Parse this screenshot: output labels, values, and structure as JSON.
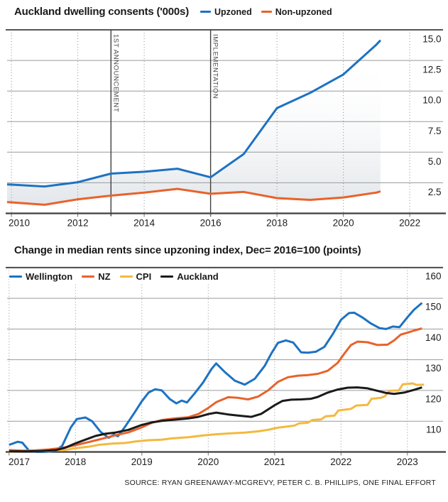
{
  "source_note": "SOURCE: RYAN GREENAWAY-MCGREVY, PETER C. B. PHILLIPS, ONE FINAL EFFORT",
  "colors": {
    "blue": "#1d72c2",
    "orange": "#e8622a",
    "yellow": "#f3b93f",
    "black": "#1a1a1a",
    "grid": "#9a9a9a",
    "frame": "#3f3f3f",
    "annotation": "#4c4c4c",
    "fill_low": "#dfe3e8"
  },
  "chart_data": [
    {
      "id": "consents",
      "type": "line",
      "title": "Auckland dwelling consents ('000s)",
      "ylabel": "",
      "xlabel": "",
      "ylim": [
        0,
        15
      ],
      "xlim": [
        2009.87,
        2023.13
      ],
      "grid": true,
      "legend_position": "top-right-of-title",
      "legend": [
        {
          "label": "Upzoned",
          "color": "#1d72c2"
        },
        {
          "label": "Non-upzoned",
          "color": "#e8622a"
        }
      ],
      "x_ticks": [
        {
          "t": 2010,
          "label": "2010"
        },
        {
          "t": 2012,
          "label": "2012"
        },
        {
          "t": 2014,
          "label": "2014"
        },
        {
          "t": 2016,
          "label": "2016"
        },
        {
          "t": 2018,
          "label": "2018"
        },
        {
          "t": 2020,
          "label": "2020"
        },
        {
          "t": 2022,
          "label": "2022"
        }
      ],
      "y_ticks": [
        {
          "v": 15,
          "label": "15.0",
          "is_border": true
        },
        {
          "v": 12.5,
          "label": "12.5"
        },
        {
          "v": 10,
          "label": "10.0"
        },
        {
          "v": 7.5,
          "label": "7.5"
        },
        {
          "v": 5,
          "label": "5.0"
        },
        {
          "v": 2.5,
          "label": "2.5"
        }
      ],
      "dotted_vertical_years": [
        2010,
        2012,
        2014,
        2018,
        2020,
        2022
      ],
      "events": [
        {
          "t": 2013,
          "label": "1ST ANNOUNCEMENT"
        },
        {
          "t": 2016,
          "label": "IMPLEMENTATION"
        }
      ],
      "fill_between": [
        "Upzoned",
        "Non-upzoned"
      ],
      "series": [
        {
          "name": "Upzoned",
          "color": "#1d72c2",
          "points": [
            [
              2009.87,
              2.37
            ],
            [
              2010,
              2.35
            ],
            [
              2011,
              2.2
            ],
            [
              2012,
              2.55
            ],
            [
              2013,
              3.25
            ],
            [
              2014,
              3.4
            ],
            [
              2015,
              3.65
            ],
            [
              2016,
              2.95
            ],
            [
              2017,
              4.85
            ],
            [
              2018,
              8.6
            ],
            [
              2019,
              9.85
            ],
            [
              2020,
              11.35
            ],
            [
              2021,
              13.8
            ],
            [
              2021.12,
              14.15
            ]
          ]
        },
        {
          "name": "Non-upzoned",
          "color": "#e8622a",
          "points": [
            [
              2009.87,
              0.92
            ],
            [
              2010,
              0.9
            ],
            [
              2011,
              0.7
            ],
            [
              2012,
              1.15
            ],
            [
              2013,
              1.45
            ],
            [
              2014,
              1.7
            ],
            [
              2015,
              2.0
            ],
            [
              2016,
              1.6
            ],
            [
              2017,
              1.75
            ],
            [
              2018,
              1.25
            ],
            [
              2019,
              1.1
            ],
            [
              2020,
              1.3
            ],
            [
              2021,
              1.7
            ],
            [
              2021.12,
              1.8
            ]
          ]
        }
      ]
    },
    {
      "id": "rents",
      "type": "line",
      "title": "Change in median rents since upzoning index, Dec= 2016=100 (points)",
      "ylabel": "",
      "xlabel": "",
      "ylim": [
        100,
        160
      ],
      "xlim": [
        2016.97,
        2023.54
      ],
      "grid": true,
      "legend_position": "inside-top-left",
      "legend": [
        {
          "label": "Wellington",
          "color": "#1d72c2"
        },
        {
          "label": "NZ",
          "color": "#e8622a"
        },
        {
          "label": "CPI",
          "color": "#f3b93f"
        },
        {
          "label": "Auckland",
          "color": "#1a1a1a"
        }
      ],
      "x_ticks": [
        {
          "t": 2017,
          "label": "2017"
        },
        {
          "t": 2018,
          "label": "2018"
        },
        {
          "t": 2019,
          "label": "2019"
        },
        {
          "t": 2020,
          "label": "2020"
        },
        {
          "t": 2021,
          "label": "2021"
        },
        {
          "t": 2022,
          "label": "2022"
        },
        {
          "t": 2023,
          "label": "2023"
        }
      ],
      "y_ticks": [
        {
          "v": 160,
          "label": "160",
          "is_border": true
        },
        {
          "v": 150,
          "label": "150"
        },
        {
          "v": 140,
          "label": "140"
        },
        {
          "v": 130,
          "label": "130"
        },
        {
          "v": 120,
          "label": "120"
        },
        {
          "v": 110,
          "label": "110"
        }
      ],
      "dotted_vertical_years": [
        2017,
        2018,
        2019,
        2020,
        2021,
        2022,
        2023
      ],
      "events": [],
      "fill_between": null,
      "series": [
        {
          "name": "Wellington",
          "color": "#1d72c2",
          "points": [
            [
              2017.0,
              102.3
            ],
            [
              2017.13,
              103.3
            ],
            [
              2017.2,
              103.0
            ],
            [
              2017.3,
              100.4
            ],
            [
              2017.42,
              100.0
            ],
            [
              2017.55,
              100.0
            ],
            [
              2017.7,
              100.4
            ],
            [
              2017.8,
              102.0
            ],
            [
              2017.93,
              108.0
            ],
            [
              2018.02,
              110.7
            ],
            [
              2018.15,
              111.2
            ],
            [
              2018.25,
              110.0
            ],
            [
              2018.38,
              106.5
            ],
            [
              2018.5,
              104.6
            ],
            [
              2018.58,
              105.6
            ],
            [
              2018.64,
              105.1
            ],
            [
              2018.75,
              108.3
            ],
            [
              2018.88,
              112.5
            ],
            [
              2019.0,
              116.5
            ],
            [
              2019.1,
              119.3
            ],
            [
              2019.2,
              120.4
            ],
            [
              2019.3,
              120.0
            ],
            [
              2019.42,
              117.2
            ],
            [
              2019.52,
              115.8
            ],
            [
              2019.6,
              116.7
            ],
            [
              2019.68,
              116.1
            ],
            [
              2019.8,
              119.2
            ],
            [
              2019.92,
              122.5
            ],
            [
              2020.05,
              127.0
            ],
            [
              2020.12,
              128.8
            ],
            [
              2020.25,
              126.0
            ],
            [
              2020.4,
              123.2
            ],
            [
              2020.55,
              121.9
            ],
            [
              2020.7,
              123.8
            ],
            [
              2020.85,
              128.0
            ],
            [
              2020.95,
              132.0
            ],
            [
              2021.05,
              135.5
            ],
            [
              2021.17,
              136.3
            ],
            [
              2021.28,
              135.6
            ],
            [
              2021.4,
              132.4
            ],
            [
              2021.5,
              132.3
            ],
            [
              2021.62,
              132.6
            ],
            [
              2021.75,
              134.2
            ],
            [
              2021.88,
              138.5
            ],
            [
              2022.0,
              143.0
            ],
            [
              2022.12,
              145.2
            ],
            [
              2022.2,
              145.3
            ],
            [
              2022.32,
              143.8
            ],
            [
              2022.45,
              141.8
            ],
            [
              2022.58,
              140.3
            ],
            [
              2022.68,
              140.0
            ],
            [
              2022.78,
              140.8
            ],
            [
              2022.88,
              140.6
            ],
            [
              2023.0,
              143.8
            ],
            [
              2023.1,
              146.3
            ],
            [
              2023.22,
              148.5
            ]
          ]
        },
        {
          "name": "NZ",
          "color": "#e8622a",
          "points": [
            [
              2017.0,
              100.6
            ],
            [
              2017.2,
              100.4
            ],
            [
              2017.4,
              100.5
            ],
            [
              2017.6,
              100.8
            ],
            [
              2017.8,
              101.3
            ],
            [
              2018.0,
              102.2
            ],
            [
              2018.2,
              103.2
            ],
            [
              2018.4,
              104.3
            ],
            [
              2018.6,
              105.4
            ],
            [
              2018.8,
              106.4
            ],
            [
              2019.0,
              108.0
            ],
            [
              2019.15,
              109.5
            ],
            [
              2019.3,
              110.4
            ],
            [
              2019.5,
              110.9
            ],
            [
              2019.7,
              111.3
            ],
            [
              2019.85,
              112.3
            ],
            [
              2020.0,
              114.3
            ],
            [
              2020.12,
              116.2
            ],
            [
              2020.3,
              117.8
            ],
            [
              2020.45,
              117.6
            ],
            [
              2020.6,
              117.1
            ],
            [
              2020.75,
              118.0
            ],
            [
              2020.9,
              120.0
            ],
            [
              2021.05,
              122.8
            ],
            [
              2021.2,
              124.3
            ],
            [
              2021.35,
              124.8
            ],
            [
              2021.5,
              125.0
            ],
            [
              2021.65,
              125.4
            ],
            [
              2021.8,
              126.4
            ],
            [
              2021.95,
              129.0
            ],
            [
              2022.05,
              132.0
            ],
            [
              2022.15,
              134.8
            ],
            [
              2022.25,
              135.9
            ],
            [
              2022.4,
              135.7
            ],
            [
              2022.55,
              134.8
            ],
            [
              2022.7,
              134.9
            ],
            [
              2022.8,
              136.3
            ],
            [
              2022.9,
              138.2
            ],
            [
              2023.0,
              138.8
            ],
            [
              2023.1,
              139.5
            ],
            [
              2023.22,
              140.2
            ]
          ]
        },
        {
          "name": "CPI",
          "color": "#f3b93f",
          "points": [
            [
              2017.0,
              100.1
            ],
            [
              2017.3,
              100.3
            ],
            [
              2017.55,
              100.2
            ],
            [
              2017.7,
              100.6
            ],
            [
              2017.8,
              100.5
            ],
            [
              2018.0,
              101.2
            ],
            [
              2018.2,
              101.7
            ],
            [
              2018.35,
              102.3
            ],
            [
              2018.55,
              102.7
            ],
            [
              2018.75,
              102.9
            ],
            [
              2018.9,
              103.4
            ],
            [
              2019.1,
              103.8
            ],
            [
              2019.3,
              104.0
            ],
            [
              2019.45,
              104.4
            ],
            [
              2019.7,
              104.8
            ],
            [
              2019.9,
              105.3
            ],
            [
              2020.1,
              105.7
            ],
            [
              2020.3,
              106.0
            ],
            [
              2020.55,
              106.3
            ],
            [
              2020.75,
              106.7
            ],
            [
              2020.9,
              107.2
            ],
            [
              2021.05,
              107.9
            ],
            [
              2021.2,
              108.3
            ],
            [
              2021.3,
              108.6
            ],
            [
              2021.37,
              109.3
            ],
            [
              2021.5,
              109.5
            ],
            [
              2021.57,
              110.4
            ],
            [
              2021.7,
              110.6
            ],
            [
              2021.77,
              111.6
            ],
            [
              2021.9,
              111.8
            ],
            [
              2021.96,
              113.5
            ],
            [
              2022.15,
              114.0
            ],
            [
              2022.23,
              115.1
            ],
            [
              2022.4,
              115.3
            ],
            [
              2022.46,
              117.3
            ],
            [
              2022.6,
              117.6
            ],
            [
              2022.66,
              118.1
            ],
            [
              2022.73,
              119.9
            ],
            [
              2022.87,
              120.0
            ],
            [
              2022.93,
              122.0
            ],
            [
              2023.08,
              122.3
            ],
            [
              2023.14,
              121.8
            ],
            [
              2023.25,
              121.9
            ]
          ]
        },
        {
          "name": "Auckland",
          "color": "#1a1a1a",
          "points": [
            [
              2017.0,
              100.2
            ],
            [
              2017.25,
              100.2
            ],
            [
              2017.5,
              100.3
            ],
            [
              2017.7,
              100.6
            ],
            [
              2017.85,
              101.4
            ],
            [
              2018.0,
              102.8
            ],
            [
              2018.15,
              104.0
            ],
            [
              2018.3,
              105.2
            ],
            [
              2018.45,
              105.9
            ],
            [
              2018.6,
              106.3
            ],
            [
              2018.8,
              107.2
            ],
            [
              2019.0,
              108.8
            ],
            [
              2019.15,
              109.6
            ],
            [
              2019.3,
              110.1
            ],
            [
              2019.5,
              110.5
            ],
            [
              2019.7,
              110.9
            ],
            [
              2019.85,
              111.4
            ],
            [
              2020.0,
              112.3
            ],
            [
              2020.12,
              112.8
            ],
            [
              2020.3,
              112.2
            ],
            [
              2020.5,
              111.7
            ],
            [
              2020.65,
              111.4
            ],
            [
              2020.8,
              112.4
            ],
            [
              2021.0,
              115.2
            ],
            [
              2021.12,
              116.6
            ],
            [
              2021.25,
              117.0
            ],
            [
              2021.4,
              117.1
            ],
            [
              2021.55,
              117.3
            ],
            [
              2021.65,
              117.9
            ],
            [
              2021.8,
              119.3
            ],
            [
              2021.95,
              120.3
            ],
            [
              2022.1,
              120.9
            ],
            [
              2022.25,
              121.0
            ],
            [
              2022.4,
              120.7
            ],
            [
              2022.55,
              119.9
            ],
            [
              2022.68,
              119.2
            ],
            [
              2022.8,
              118.9
            ],
            [
              2022.95,
              119.3
            ],
            [
              2023.1,
              120.2
            ],
            [
              2023.22,
              121.0
            ]
          ]
        }
      ]
    }
  ]
}
